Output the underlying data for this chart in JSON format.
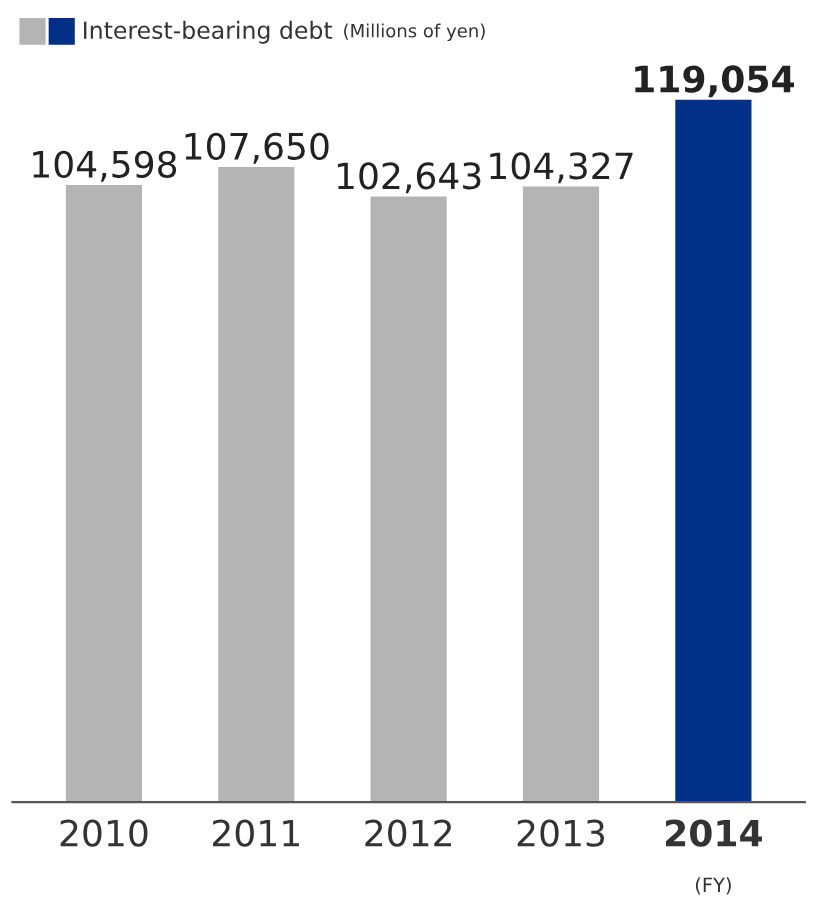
{
  "chart_data": {
    "type": "bar",
    "categories": [
      "2010",
      "2011",
      "2012",
      "2013",
      "2014"
    ],
    "series": [
      {
        "name": "Interest-bearing debt",
        "values": [
          104598,
          107650,
          102643,
          104327,
          119054
        ],
        "colors": [
          "#b4b4b4",
          "#b4b4b4",
          "#b4b4b4",
          "#b4b4b4",
          "#003087"
        ],
        "value_labels": [
          "104,598",
          "107,650",
          "102,643",
          "104,327",
          "119,054"
        ]
      }
    ],
    "annotations": [
      "(Millions of yen)",
      "(FY)"
    ],
    "tick_labels": "x",
    "legend": "top left",
    "grid": false
  }
}
